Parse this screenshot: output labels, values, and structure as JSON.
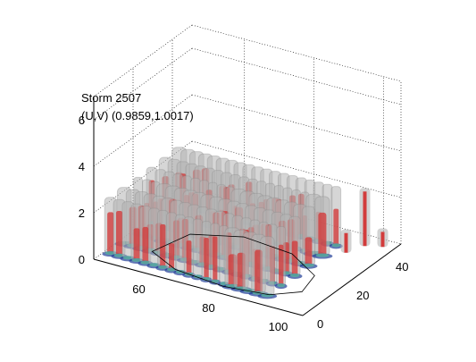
{
  "chart_data": {
    "type": "3d-isosurface",
    "title": "Storm 2507",
    "subtitle": "(U,V) (0.9859,1.0017)",
    "x_ticks": [
      60,
      80,
      100
    ],
    "y_ticks": [
      0,
      20,
      40
    ],
    "z_ticks": [
      0,
      2,
      4,
      6
    ],
    "xlim": [
      45,
      105
    ],
    "ylim": [
      0,
      50
    ],
    "zlim": [
      0,
      7
    ],
    "grid": true,
    "colors": {
      "outer_surface": "#b4b4b4",
      "inner_surface": "#d23c3c",
      "base_blue": "#1e3c96",
      "base_green": "#5ab4a0",
      "grid": "#000000"
    }
  }
}
